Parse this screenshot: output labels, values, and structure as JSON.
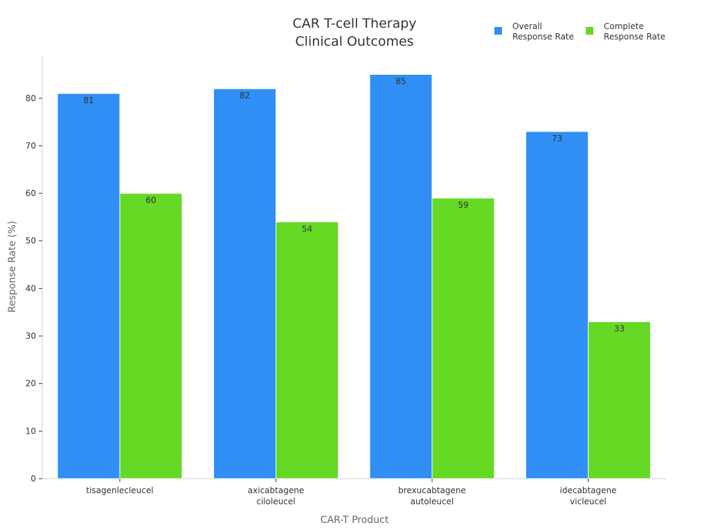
{
  "chart_data": {
    "type": "bar",
    "title_lines": [
      "CAR T-cell Therapy",
      "Clinical Outcomes"
    ],
    "xlabel": "CAR-T Product",
    "ylabel": "Response Rate (%)",
    "categories": [
      [
        "tisagenlecleucel"
      ],
      [
        "axicabtagene",
        "ciloleucel"
      ],
      [
        "brexucabtagene",
        "autoleucel"
      ],
      [
        "idecabtagene",
        "vicleucel"
      ]
    ],
    "series": [
      {
        "name_lines": [
          "Overall",
          "Response Rate"
        ],
        "color": "#2f8ff5",
        "values": [
          81,
          82,
          85,
          73
        ]
      },
      {
        "name_lines": [
          "Complete",
          "Response Rate"
        ],
        "color": "#66d925",
        "values": [
          60,
          54,
          59,
          33
        ]
      }
    ],
    "ylim": [
      0,
      89
    ],
    "yticks": [
      0,
      10,
      20,
      30,
      40,
      50,
      60,
      70,
      80
    ],
    "grid": false,
    "legend_position": "top-right",
    "data_labels": true
  }
}
